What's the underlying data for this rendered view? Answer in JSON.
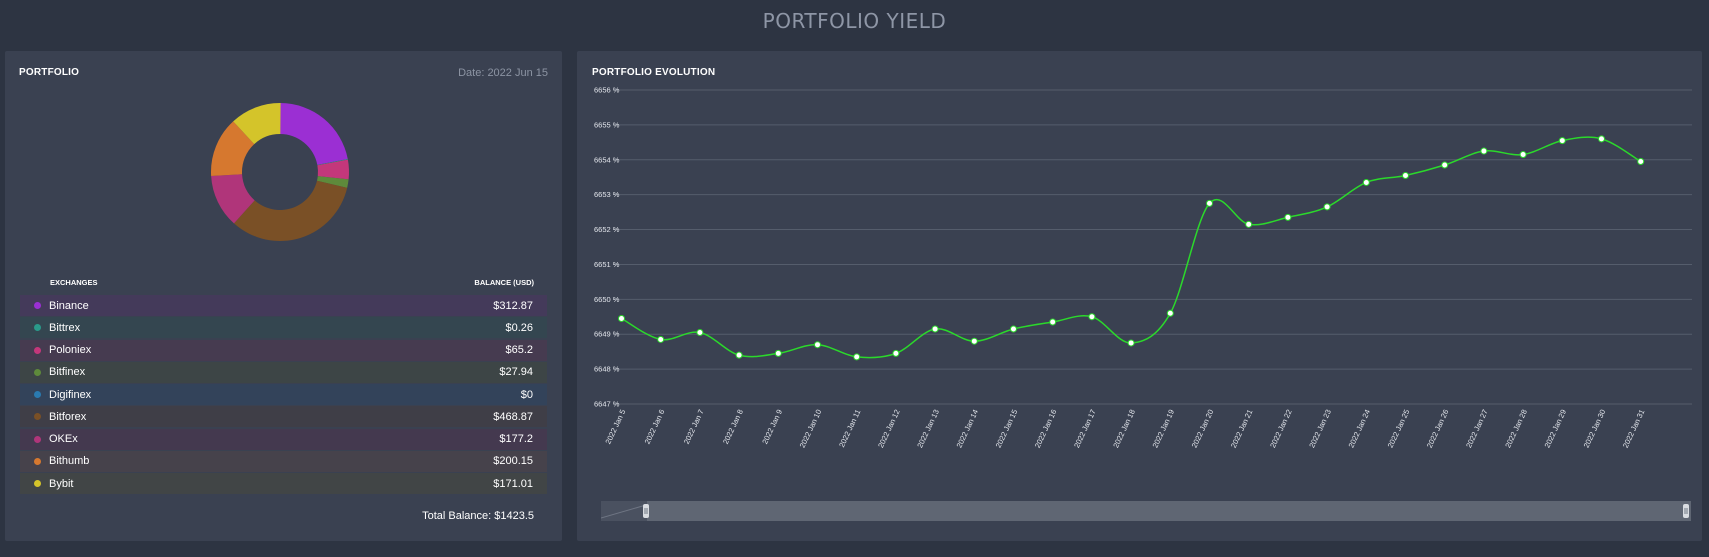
{
  "page": {
    "title": "PORTFOLIO YIELD"
  },
  "portfolio": {
    "heading": "PORTFOLIO",
    "date": "Date: 2022 Jun 15",
    "col_exchanges": "EXCHANGES",
    "col_balance": "BALANCE (USD)",
    "total": "Total Balance: $1423.5",
    "exchanges": [
      {
        "name": "Binance",
        "balance": "$312.87",
        "value": 312.87,
        "color": "#9b2fd3",
        "row_bg": "#443a5a"
      },
      {
        "name": "Bittrex",
        "balance": "$0.26",
        "value": 0.26,
        "color": "#2a9a8a",
        "row_bg": "#344650"
      },
      {
        "name": "Poloniex",
        "balance": "$65.2",
        "value": 65.2,
        "color": "#c4377b",
        "row_bg": "#463b50"
      },
      {
        "name": "Bitfinex",
        "balance": "$27.94",
        "value": 27.94,
        "color": "#5e8a3b",
        "row_bg": "#3d4546"
      },
      {
        "name": "Digifinex",
        "balance": "$0",
        "value": 0,
        "color": "#2a7ab0",
        "row_bg": "#33435a"
      },
      {
        "name": "Bitforex",
        "balance": "$468.87",
        "value": 468.87,
        "color": "#7a5026",
        "row_bg": "#3f3e47"
      },
      {
        "name": "OKEx",
        "balance": "$177.2",
        "value": 177.2,
        "color": "#b0357a",
        "row_bg": "#44394f"
      },
      {
        "name": "Bithumb",
        "balance": "$200.15",
        "value": 200.15,
        "color": "#d6782f",
        "row_bg": "#46424b"
      },
      {
        "name": "Bybit",
        "balance": "$171.01",
        "value": 171.01,
        "color": "#d4c42a",
        "row_bg": "#414546"
      }
    ]
  },
  "evolution": {
    "heading": "PORTFOLIO EVOLUTION"
  },
  "chart_data": {
    "type": "line",
    "title": "PORTFOLIO EVOLUTION",
    "series_color": "#2bd92b",
    "y_ticks": [
      "6656 %",
      "6655 %",
      "6654 %",
      "6653 %",
      "6652 %",
      "6651 %",
      "6650 %",
      "6649 %",
      "6648 %",
      "6647 %"
    ],
    "ylim": [
      6647,
      6656
    ],
    "grid": true,
    "categories": [
      "2022 Jan 5",
      "2022 Jan 6",
      "2022 Jan 7",
      "2022 Jan 8",
      "2022 Jan 9",
      "2022 Jan 10",
      "2022 Jan 11",
      "2022 Jan 12",
      "2022 Jan 13",
      "2022 Jan 14",
      "2022 Jan 15",
      "2022 Jan 16",
      "2022 Jan 17",
      "2022 Jan 18",
      "2022 Jan 19",
      "2022 Jan 20",
      "2022 Jan 21",
      "2022 Jan 22",
      "2022 Jan 23",
      "2022 Jan 24",
      "2022 Jan 25",
      "2022 Jan 26",
      "2022 Jan 27",
      "2022 Jan 28",
      "2022 Jan 29",
      "2022 Jan 30",
      "2022 Jan 31"
    ],
    "values": [
      6649.45,
      6648.85,
      6649.05,
      6648.4,
      6648.45,
      6648.7,
      6648.35,
      6648.45,
      6649.15,
      6648.8,
      6649.15,
      6649.35,
      6649.5,
      6648.75,
      6649.6,
      6652.75,
      6652.15,
      6652.35,
      6652.65,
      6653.35,
      6653.55,
      6653.85,
      6654.25,
      6654.15,
      6654.55,
      6654.6,
      6653.95
    ]
  }
}
